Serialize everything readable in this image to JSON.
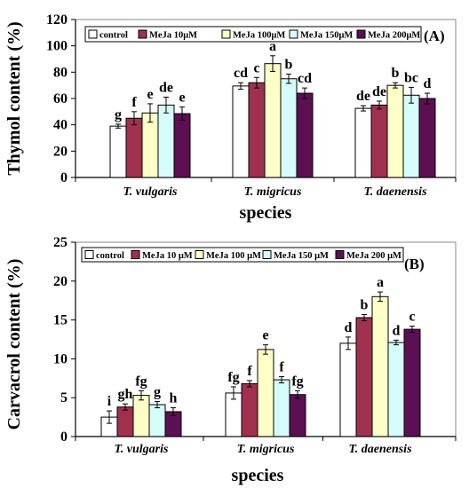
{
  "chart_data": [
    {
      "type": "bar",
      "panel_label": "(A)",
      "categories": [
        "T. vulgaris",
        "T. migricus",
        "T. daenensis"
      ],
      "xlabel": "species",
      "ylabel": "Thymol content (%)",
      "ylim": [
        0,
        120
      ],
      "yticks": [
        0,
        20,
        40,
        60,
        80,
        100,
        120
      ],
      "grid": false,
      "legend_position": "top",
      "series": [
        {
          "name": "control",
          "color": "#ffffff",
          "values": [
            39,
            69.5,
            52.5
          ],
          "errors": [
            1.5,
            2.5,
            2
          ],
          "letters": [
            "g",
            "cd",
            "de"
          ]
        },
        {
          "name": "MeJa 10μM",
          "color": "#a0314e",
          "values": [
            45,
            72,
            55
          ],
          "errors": [
            5,
            4,
            3
          ],
          "letters": [
            "f",
            "c",
            "de"
          ]
        },
        {
          "name": "MeJa 100μM",
          "color": "#ffffc8",
          "values": [
            49,
            86.5,
            70
          ],
          "errors": [
            7,
            6,
            2
          ],
          "letters": [
            "e",
            "a",
            "b"
          ]
        },
        {
          "name": "MeJa 150μM",
          "color": "#d6fbfb",
          "values": [
            55,
            75,
            62.5
          ],
          "errors": [
            6,
            3.5,
            6
          ],
          "letters": [
            "de",
            "b",
            "bc"
          ]
        },
        {
          "name": "MeJa 200μM",
          "color": "#5c0f52",
          "values": [
            48.5,
            64,
            60
          ],
          "errors": [
            5,
            4,
            4
          ],
          "letters": [
            "e",
            "cd",
            "d"
          ]
        }
      ]
    },
    {
      "type": "bar",
      "panel_label": "(B)",
      "categories": [
        "T. vulgaris",
        "T. migricus",
        "T. daenensis"
      ],
      "xlabel": "species",
      "ylabel": "Carvacrol content (%)",
      "ylim": [
        0,
        25
      ],
      "yticks": [
        0,
        5,
        10,
        15,
        20,
        25
      ],
      "grid": false,
      "legend_position": "top-right",
      "series": [
        {
          "name": "control",
          "color": "#ffffff",
          "values": [
            2.5,
            5.6,
            12.0
          ],
          "errors": [
            0.8,
            0.8,
            0.8
          ],
          "letters": [
            "i",
            "fg",
            "d"
          ]
        },
        {
          "name": "MeJa 10 μM",
          "color": "#a0314e",
          "values": [
            3.8,
            6.8,
            15.3
          ],
          "errors": [
            0.4,
            0.4,
            0.4
          ],
          "letters": [
            "gh",
            "f",
            "b"
          ]
        },
        {
          "name": "MeJa 100 μM",
          "color": "#ffffc8",
          "values": [
            5.3,
            11.2,
            18.0
          ],
          "errors": [
            0.6,
            0.6,
            0.6
          ],
          "letters": [
            "fg",
            "e",
            "a"
          ]
        },
        {
          "name": "MeJa 150 μM",
          "color": "#d6fbfb",
          "values": [
            4.1,
            7.3,
            12.1
          ],
          "errors": [
            0.4,
            0.4,
            0.3
          ],
          "letters": [
            "g",
            "f",
            "d"
          ]
        },
        {
          "name": "MeJa 200 μM",
          "color": "#5c0f52",
          "values": [
            3.2,
            5.4,
            13.8
          ],
          "errors": [
            0.5,
            0.5,
            0.4
          ],
          "letters": [
            "h",
            "fg",
            "c"
          ]
        }
      ]
    }
  ]
}
